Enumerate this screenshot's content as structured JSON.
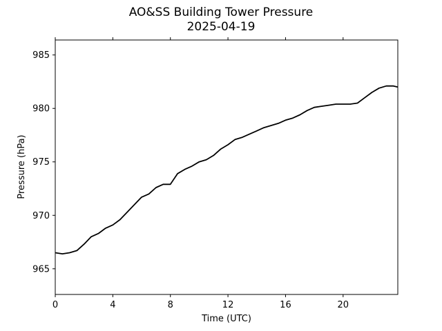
{
  "chart_data": {
    "type": "line",
    "title": "AO&SS Building Tower Pressure",
    "subtitle": "2025-04-19",
    "xlabel": "Time (UTC)",
    "ylabel": "Pressure (hPa)",
    "xlim": [
      0,
      23.8
    ],
    "ylim": [
      962.6,
      986.4
    ],
    "xticks": [
      0,
      4,
      8,
      12,
      16,
      20
    ],
    "yticks": [
      965,
      970,
      975,
      980,
      985
    ],
    "grid": false,
    "line_color": "#000000",
    "series": [
      {
        "x": [
          0,
          0.5,
          1,
          1.5,
          2,
          2.5,
          3,
          3.5,
          4,
          4.5,
          5,
          5.5,
          6,
          6.5,
          7,
          7.5,
          8,
          8.5,
          9,
          9.5,
          10,
          10.5,
          11,
          11.5,
          12,
          12.5,
          13,
          13.5,
          14,
          14.5,
          15,
          15.5,
          16,
          16.5,
          17,
          17.5,
          18,
          18.5,
          19,
          19.5,
          20,
          20.5,
          21,
          21.5,
          22,
          22.5,
          23,
          23.5,
          23.8
        ],
        "y": [
          966.5,
          966.4,
          966.5,
          966.7,
          967.3,
          968.0,
          968.3,
          968.8,
          969.1,
          969.6,
          970.3,
          971.0,
          971.7,
          972.0,
          972.6,
          972.9,
          972.9,
          973.9,
          974.3,
          974.6,
          975.0,
          975.2,
          975.6,
          976.2,
          976.6,
          977.1,
          977.3,
          977.6,
          977.9,
          978.2,
          978.4,
          978.6,
          978.9,
          979.1,
          979.4,
          979.8,
          980.1,
          980.2,
          980.3,
          980.4,
          980.4,
          980.4,
          980.5,
          981.0,
          981.5,
          981.9,
          982.1,
          982.1,
          982.0
        ]
      }
    ]
  }
}
